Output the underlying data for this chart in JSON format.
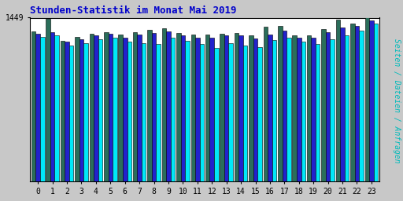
{
  "title": "Stunden-Statistik im Monat Mai 2019",
  "ylabel": "Seiten / Dateien / Anfragen",
  "xlabel_values": [
    0,
    1,
    2,
    3,
    4,
    5,
    6,
    7,
    8,
    9,
    10,
    11,
    12,
    13,
    14,
    15,
    16,
    17,
    18,
    19,
    20,
    21,
    22,
    23
  ],
  "ylim_max": 1449,
  "ytick_label": "1449",
  "background_color": "#c8c8c8",
  "plot_bg_color": "#ffffff",
  "title_color": "#0000cc",
  "ylabel_color": "#00bbbb",
  "border_color": "#000000",
  "colors": {
    "green": "#2a6e5a",
    "blue": "#2222cc",
    "cyan": "#00e8f8"
  },
  "series_green": [
    1330,
    1440,
    1245,
    1280,
    1310,
    1320,
    1300,
    1320,
    1340,
    1355,
    1315,
    1300,
    1300,
    1310,
    1315,
    1295,
    1370,
    1375,
    1290,
    1290,
    1345,
    1430,
    1400,
    1449
  ],
  "series_blue": [
    1310,
    1320,
    1235,
    1260,
    1290,
    1305,
    1275,
    1300,
    1315,
    1325,
    1290,
    1275,
    1270,
    1290,
    1290,
    1265,
    1300,
    1335,
    1270,
    1270,
    1320,
    1360,
    1375,
    1425
  ],
  "series_cyan": [
    1280,
    1295,
    1200,
    1225,
    1260,
    1275,
    1235,
    1225,
    1220,
    1270,
    1245,
    1215,
    1180,
    1225,
    1200,
    1190,
    1250,
    1270,
    1235,
    1220,
    1255,
    1290,
    1335,
    1395
  ]
}
